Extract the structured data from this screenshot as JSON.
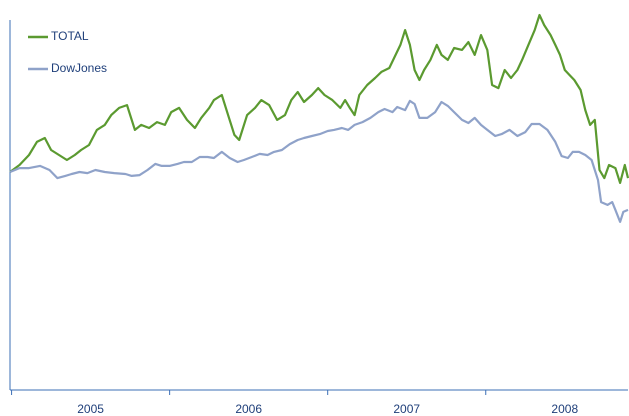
{
  "chart_data": {
    "type": "line",
    "series": [
      {
        "name": "TOTAL",
        "color": "#5b9a30",
        "x": [
          2004.99,
          2005.05,
          2005.11,
          2005.16,
          2005.21,
          2005.25,
          2005.3,
          2005.35,
          2005.4,
          2005.44,
          2005.49,
          2005.54,
          2005.59,
          2005.63,
          2005.68,
          2005.73,
          2005.78,
          2005.82,
          2005.87,
          2005.92,
          2005.97,
          2006.01,
          2006.06,
          2006.11,
          2006.16,
          2006.2,
          2006.25,
          2006.28,
          2006.33,
          2006.37,
          2006.41,
          2006.44,
          2006.49,
          2006.54,
          2006.58,
          2006.63,
          2006.68,
          2006.73,
          2006.77,
          2006.81,
          2006.85,
          2006.9,
          2006.94,
          2006.98,
          2007.03,
          2007.08,
          2007.11,
          2007.14,
          2007.17,
          2007.2,
          2007.25,
          2007.3,
          2007.34,
          2007.39,
          2007.42,
          2007.46,
          2007.49,
          2007.52,
          2007.55,
          2007.58,
          2007.61,
          2007.65,
          2007.69,
          2007.72,
          2007.76,
          2007.8,
          2007.85,
          2007.89,
          2007.93,
          2007.97,
          2008.01,
          2008.04,
          2008.08,
          2008.12,
          2008.16,
          2008.2,
          2008.23,
          2008.27,
          2008.31,
          2008.34,
          2008.37,
          2008.41,
          2008.44,
          2008.47,
          2008.5,
          2008.53,
          2008.56,
          2008.6,
          2008.63,
          2008.66,
          2008.69,
          2008.72,
          2008.75,
          2008.78,
          2008.82,
          2008.85,
          2008.88,
          2008.9
        ],
        "values": [
          100.0,
          103.2,
          107.8,
          113.8,
          115.6,
          110.1,
          107.8,
          105.5,
          107.8,
          110.1,
          112.4,
          119.3,
          121.6,
          126.1,
          129.4,
          130.7,
          119.3,
          121.6,
          120.2,
          122.9,
          121.6,
          127.5,
          129.4,
          123.9,
          120.2,
          124.8,
          129.4,
          133.0,
          135.3,
          126.1,
          117.0,
          114.7,
          126.1,
          129.4,
          133.0,
          130.7,
          123.9,
          126.1,
          133.0,
          136.7,
          132.1,
          135.3,
          138.5,
          135.3,
          133.0,
          129.4,
          133.0,
          129.4,
          126.1,
          135.3,
          139.9,
          143.1,
          145.9,
          147.7,
          152.3,
          158.3,
          165.1,
          158.3,
          146.8,
          142.2,
          146.8,
          151.4,
          158.3,
          153.7,
          151.4,
          156.9,
          156.0,
          159.6,
          153.7,
          162.8,
          156.0,
          139.9,
          138.5,
          146.8,
          143.1,
          146.8,
          151.4,
          158.3,
          165.1,
          172.0,
          167.4,
          162.8,
          158.3,
          153.7,
          146.8,
          144.5,
          142.2,
          137.6,
          128.4,
          121.6,
          123.9,
          100.9,
          97.2,
          103.2,
          101.8,
          95.0,
          103.2,
          97.2
        ]
      },
      {
        "name": "DowJones",
        "color": "#8fa2c9",
        "x": [
          2004.99,
          2005.05,
          2005.11,
          2005.18,
          2005.24,
          2005.29,
          2005.34,
          2005.38,
          2005.43,
          2005.48,
          2005.53,
          2005.59,
          2005.65,
          2005.72,
          2005.76,
          2005.81,
          2005.86,
          2005.91,
          2005.95,
          2006.0,
          2006.05,
          2006.09,
          2006.14,
          2006.19,
          2006.24,
          2006.28,
          2006.33,
          2006.38,
          2006.43,
          2006.47,
          2006.52,
          2006.57,
          2006.62,
          2006.66,
          2006.71,
          2006.76,
          2006.81,
          2006.85,
          2006.9,
          2006.95,
          2007.0,
          2007.04,
          2007.09,
          2007.13,
          2007.17,
          2007.22,
          2007.27,
          2007.32,
          2007.36,
          2007.41,
          2007.44,
          2007.49,
          2007.52,
          2007.55,
          2007.58,
          2007.63,
          2007.68,
          2007.72,
          2007.76,
          2007.8,
          2007.85,
          2007.89,
          2007.93,
          2007.97,
          2008.01,
          2008.06,
          2008.1,
          2008.15,
          2008.2,
          2008.25,
          2008.29,
          2008.34,
          2008.39,
          2008.44,
          2008.48,
          2008.52,
          2008.55,
          2008.59,
          2008.63,
          2008.67,
          2008.71,
          2008.73,
          2008.77,
          2008.8,
          2008.82,
          2008.85,
          2008.87,
          2008.9
        ],
        "values": [
          100.0,
          101.8,
          101.8,
          102.8,
          100.9,
          97.2,
          98.2,
          99.1,
          100.0,
          99.5,
          100.9,
          100.0,
          99.5,
          99.1,
          98.2,
          98.6,
          100.9,
          103.7,
          102.8,
          102.8,
          103.7,
          104.6,
          104.6,
          106.9,
          106.9,
          106.4,
          109.2,
          106.4,
          104.6,
          105.5,
          106.9,
          108.3,
          107.8,
          109.2,
          110.1,
          112.8,
          114.7,
          115.6,
          116.5,
          117.4,
          118.8,
          119.3,
          120.2,
          119.3,
          121.6,
          122.9,
          124.8,
          127.5,
          128.9,
          127.5,
          129.8,
          128.4,
          132.6,
          131.2,
          124.8,
          124.8,
          127.5,
          132.1,
          130.3,
          127.5,
          123.9,
          122.5,
          124.8,
          121.6,
          119.3,
          116.5,
          117.4,
          119.3,
          116.5,
          118.3,
          122.0,
          122.0,
          119.3,
          113.8,
          107.3,
          106.4,
          109.2,
          109.2,
          107.8,
          105.5,
          96.3,
          86.2,
          84.9,
          86.2,
          82.6,
          77.1,
          81.7,
          82.6
        ]
      }
    ],
    "xlim": [
      2004.99,
      2008.9
    ],
    "xticks": [
      {
        "value": 2005.5,
        "label": "2005"
      },
      {
        "value": 2006.5,
        "label": "2006"
      },
      {
        "value": 2007.5,
        "label": "2007"
      },
      {
        "value": 2008.5,
        "label": "2008"
      }
    ],
    "xtick_marks": [
      2005,
      2006,
      2007,
      2008
    ],
    "ylim": [
      0,
      178.9
    ],
    "legend": "top-left",
    "axis_color": "#3b6fb6"
  }
}
